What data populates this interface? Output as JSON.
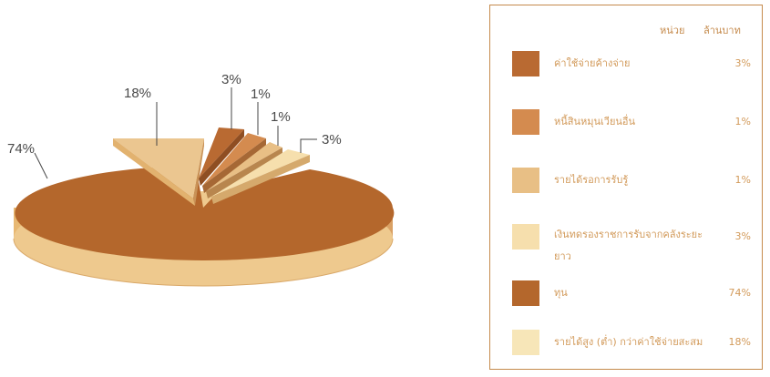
{
  "chart_data": {
    "type": "pie",
    "slices": [
      {
        "label": "ค่าใช้จ่ายค้างจ่าย",
        "value": 3,
        "pct_label": "3%",
        "color": "#b96a32"
      },
      {
        "label": "หนี้สินหมุนเวียนอื่น",
        "value": 1,
        "pct_label": "1%",
        "color": "#d48b4f"
      },
      {
        "label": "รายได้รอการรับรู้",
        "value": 1,
        "pct_label": "1%",
        "color": "#e8bf85"
      },
      {
        "label": "เงินทดรองราชการรับจากคลังระยะยาว",
        "value": 3,
        "pct_label": "3%",
        "color": "#f6dfad"
      },
      {
        "label": "ทุน",
        "value": 74,
        "pct_label": "74%",
        "color": "#b4672c"
      },
      {
        "label": "รายได้สูง (ต่ำ) กว่าค่าใช้จ่ายสะสม",
        "value": 18,
        "pct_label": "18%",
        "color": "#f7e6b8"
      }
    ],
    "legend_header": {
      "unit": "หน่วย",
      "amount": "ล้านบาท"
    },
    "legend_position": "right"
  }
}
